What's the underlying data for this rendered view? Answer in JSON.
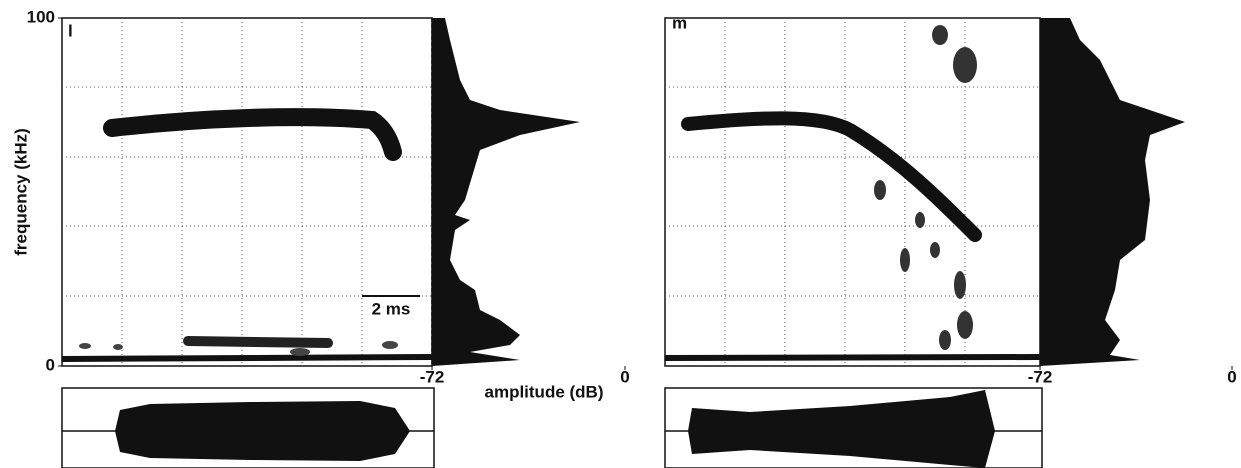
{
  "frequency_axis": {
    "label": "frequency (kHz)",
    "ticks": [
      0,
      100
    ]
  },
  "amplitude_axis": {
    "label": "amplitude (dB)"
  },
  "panels": [
    {
      "label": "l",
      "scale_bar": "2 ms",
      "amplitude_ticks": [
        -72,
        0
      ]
    },
    {
      "label": "m",
      "amplitude_ticks": [
        -72,
        0
      ]
    }
  ]
}
